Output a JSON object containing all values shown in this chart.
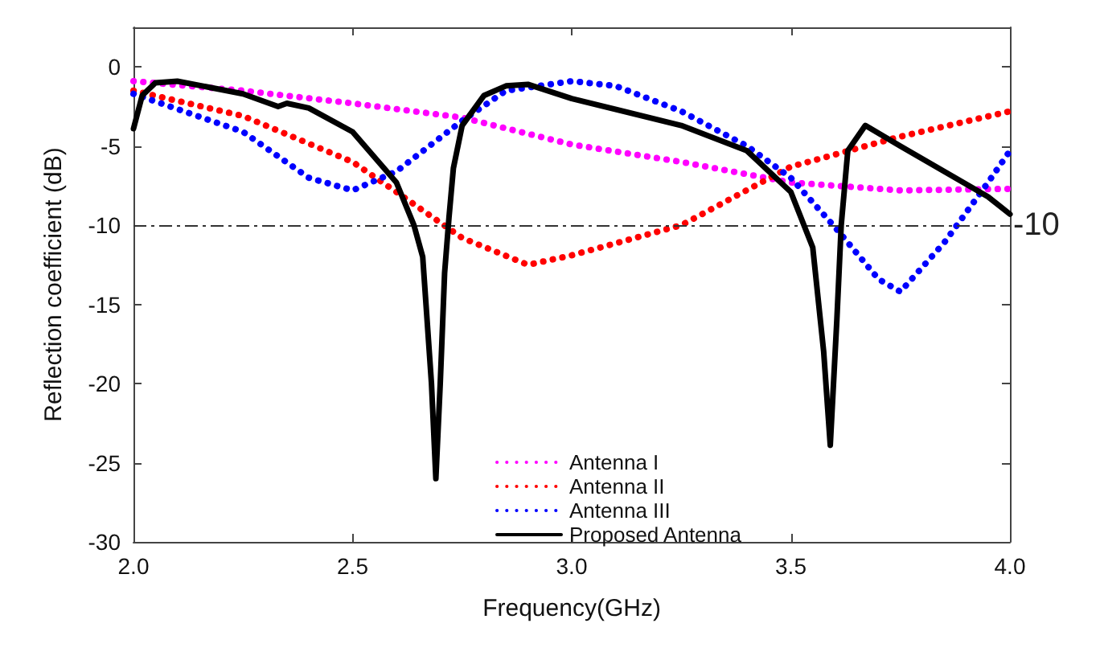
{
  "chart_data": {
    "type": "line",
    "xlabel": "Frequency(GHz)",
    "ylabel": "Reflection coefficient (dB)",
    "xlim": [
      2.0,
      4.0
    ],
    "xticks": [
      {
        "value": 2.0,
        "label": "2.0"
      },
      {
        "value": 2.5,
        "label": "2.5"
      },
      {
        "value": 3.0,
        "label": "3.0"
      },
      {
        "value": 3.5,
        "label": "3.5"
      },
      {
        "value": 4.0,
        "label": "4.0"
      }
    ],
    "ylim": [
      -30,
      2.5
    ],
    "yticks": [
      -30,
      -25,
      -20,
      -15,
      -10,
      -5,
      0
    ],
    "grid": false,
    "legend": "bottom",
    "marker": "none",
    "ref_lines": [
      {
        "axis": "y",
        "value": -10,
        "label": "-10",
        "color": "#333333",
        "line_style": "dashed"
      }
    ],
    "series": [
      {
        "name": "Antenna I",
        "color": "#ff00ff",
        "line_style": "dotted",
        "x": [
          2.0,
          2.25,
          2.5,
          2.75,
          3.0,
          3.25,
          3.5,
          3.75,
          4.0
        ],
        "values": [
          -0.9,
          -1.5,
          -2.3,
          -3.2,
          -4.9,
          -6.0,
          -7.3,
          -7.8,
          -7.7
        ]
      },
      {
        "name": "Antenna II",
        "color": "#ff0000",
        "line_style": "dotted",
        "x": [
          2.0,
          2.25,
          2.5,
          2.6,
          2.75,
          2.9,
          3.0,
          3.25,
          3.5,
          3.75,
          4.0
        ],
        "values": [
          -1.5,
          -3.1,
          -6.0,
          -7.9,
          -10.8,
          -12.5,
          -11.9,
          -10.0,
          -6.3,
          -4.4,
          -2.8
        ]
      },
      {
        "name": "Antenna III",
        "color": "#0000ff",
        "line_style": "dotted",
        "x": [
          2.0,
          2.25,
          2.4,
          2.5,
          2.6,
          2.75,
          2.85,
          3.0,
          3.1,
          3.25,
          3.4,
          3.5,
          3.6,
          3.7,
          3.75,
          3.85,
          3.95,
          4.0
        ],
        "values": [
          -1.7,
          -4.1,
          -7.0,
          -7.8,
          -6.6,
          -3.4,
          -1.5,
          -0.9,
          -1.2,
          -2.8,
          -5.0,
          -7.0,
          -10.1,
          -13.4,
          -14.2,
          -11.1,
          -7.3,
          -5.3
        ]
      },
      {
        "name": "Proposed Antenna",
        "color": "#000000",
        "line_style": "solid",
        "x": [
          2.0,
          2.02,
          2.05,
          2.1,
          2.25,
          2.33,
          2.35,
          2.4,
          2.5,
          2.6,
          2.64,
          2.66,
          2.68,
          2.69,
          2.7,
          2.71,
          2.72,
          2.73,
          2.75,
          2.8,
          2.85,
          2.9,
          3.0,
          3.25,
          3.4,
          3.5,
          3.55,
          3.575,
          3.59,
          3.605,
          3.615,
          3.63,
          3.67,
          3.75,
          3.85,
          3.95,
          4.0
        ],
        "values": [
          -3.9,
          -1.8,
          -1.0,
          -0.9,
          -1.7,
          -2.5,
          -2.3,
          -2.6,
          -4.1,
          -7.3,
          -10.0,
          -12.0,
          -20.0,
          -26.0,
          -20.0,
          -13.0,
          -9.5,
          -6.4,
          -3.7,
          -1.8,
          -1.2,
          -1.1,
          -2.0,
          -3.7,
          -5.3,
          -7.9,
          -11.4,
          -18.0,
          -23.9,
          -16.0,
          -10.0,
          -5.3,
          -3.7,
          -5.0,
          -6.6,
          -8.2,
          -9.3
        ]
      }
    ]
  }
}
